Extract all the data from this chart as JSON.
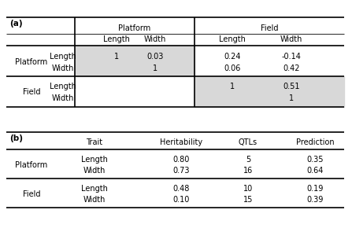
{
  "table_a_label": "(a)",
  "table_b_label": "(b)",
  "table_a": {
    "data": [
      [
        "1",
        "0.03",
        "0.24",
        "-0.14"
      ],
      [
        "",
        "1",
        "0.06",
        "0.42"
      ],
      [
        "",
        "",
        "1",
        "0.51"
      ],
      [
        "",
        "",
        "",
        "1"
      ]
    ]
  },
  "table_b": {
    "headers": [
      "Trait",
      "Heritability",
      "QTLs",
      "Prediction"
    ],
    "data": [
      [
        "Length",
        "0.80",
        "5",
        "0.35"
      ],
      [
        "Width",
        "0.73",
        "16",
        "0.64"
      ],
      [
        "Length",
        "0.48",
        "10",
        "0.19"
      ],
      [
        "Width",
        "0.10",
        "15",
        "0.39"
      ]
    ]
  },
  "bg_color": "#ffffff",
  "shade_color": "#d8d8d8",
  "line_color": "#000000",
  "font_size": 7.0,
  "lw_thick": 1.2,
  "lw_thin": 0.6
}
